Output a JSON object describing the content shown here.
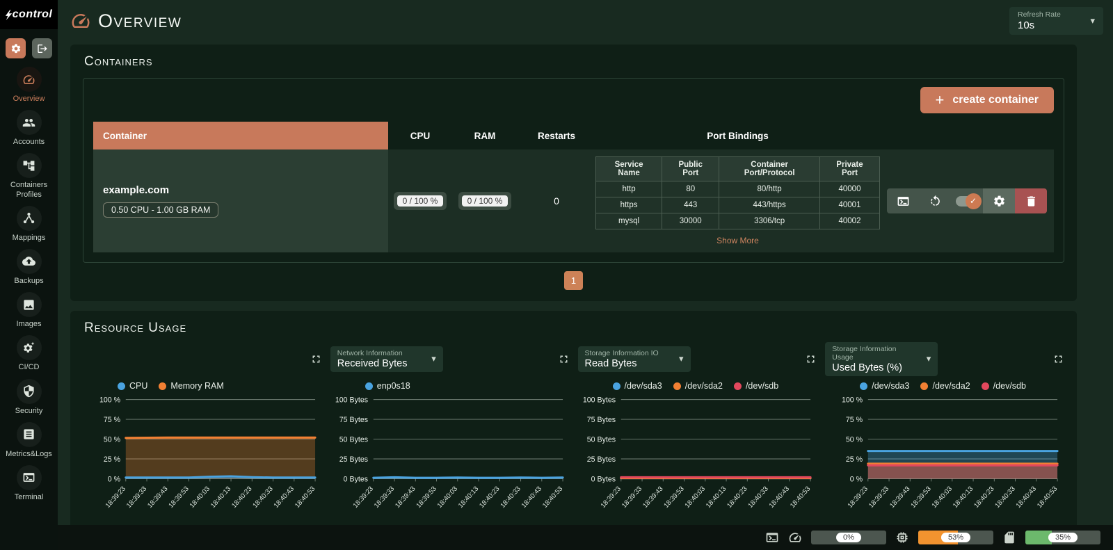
{
  "app": {
    "logo_text": "control",
    "refresh_rate": {
      "label": "Refresh Rate",
      "value": "10s"
    }
  },
  "header": {
    "title": "Overview"
  },
  "sidebar": {
    "items": [
      {
        "label": "Overview",
        "icon": "gauge-icon",
        "active": true
      },
      {
        "label": "Accounts",
        "icon": "people-icon",
        "active": false
      },
      {
        "label": "Containers Profiles",
        "icon": "tree-icon",
        "active": false
      },
      {
        "label": "Mappings",
        "icon": "hub-icon",
        "active": false
      },
      {
        "label": "Backups",
        "icon": "cloud-upload-icon",
        "active": false
      },
      {
        "label": "Images",
        "icon": "image-icon",
        "active": false
      },
      {
        "label": "CI/CD",
        "icon": "gear-sparkle-icon",
        "active": false
      },
      {
        "label": "Security",
        "icon": "shield-icon",
        "active": false
      },
      {
        "label": "Metrics&Logs",
        "icon": "logs-icon",
        "active": false
      },
      {
        "label": "Terminal",
        "icon": "terminal-icon",
        "active": false
      }
    ]
  },
  "containers": {
    "title": "Containers",
    "create_button": "create container",
    "columns": {
      "container": "Container",
      "cpu": "CPU",
      "ram": "RAM",
      "restarts": "Restarts",
      "ports": "Port Bindings"
    },
    "row": {
      "name": "example.com",
      "spec": "0.50 CPU - 1.00 GB RAM",
      "cpu": "0 / 100 %",
      "ram": "0 / 100 %",
      "restarts": "0",
      "ports": {
        "columns": [
          "Service Name",
          "Public Port",
          "Container Port/Protocol",
          "Private Port"
        ],
        "rows": [
          [
            "http",
            "80",
            "80/http",
            "40000"
          ],
          [
            "https",
            "443",
            "443/https",
            "40001"
          ],
          [
            "mysql",
            "30000",
            "3306/tcp",
            "40002"
          ]
        ],
        "show_more": "Show More"
      }
    },
    "pagination": "1"
  },
  "resource_usage": {
    "title": "Resource Usage",
    "charts": [
      {
        "legend": [
          {
            "label": "CPU",
            "color": "#4aa3e0"
          },
          {
            "label": "Memory RAM",
            "color": "#f28033"
          }
        ]
      },
      {
        "dropdown": {
          "label": "Network Information",
          "value": "Received Bytes"
        },
        "legend": [
          {
            "label": "enp0s18",
            "color": "#4aa3e0"
          }
        ]
      },
      {
        "dropdown": {
          "label": "Storage Information IO",
          "value": "Read Bytes"
        },
        "legend": [
          {
            "label": "/dev/sda3",
            "color": "#4aa3e0"
          },
          {
            "label": "/dev/sda2",
            "color": "#f28033"
          },
          {
            "label": "/dev/sdb",
            "color": "#e2485d"
          }
        ]
      },
      {
        "dropdown": {
          "label": "Storage Information Usage",
          "value": "Used Bytes (%)"
        },
        "legend": [
          {
            "label": "/dev/sda3",
            "color": "#4aa3e0"
          },
          {
            "label": "/dev/sda2",
            "color": "#f28033"
          },
          {
            "label": "/dev/sdb",
            "color": "#e2485d"
          }
        ]
      }
    ]
  },
  "chart_data": [
    {
      "type": "area",
      "title": "CPU / Memory RAM usage",
      "x": [
        "18:39:23",
        "18:39:33",
        "18:39:43",
        "18:39:53",
        "18:40:03",
        "18:40:13",
        "18:40:23",
        "18:40:33",
        "18:40:43",
        "18:40:53"
      ],
      "ylim": [
        0,
        100
      ],
      "yticks": [
        {
          "v": 100,
          "label": "100 %"
        },
        {
          "v": 75,
          "label": "75 %"
        },
        {
          "v": 50,
          "label": "50 %"
        },
        {
          "v": 25,
          "label": "25 %"
        },
        {
          "v": 0,
          "label": "0 %"
        }
      ],
      "series": [
        {
          "name": "Memory RAM",
          "color": "#f28033",
          "values": [
            51.5,
            51.8,
            52,
            52,
            52,
            52,
            52,
            52,
            52,
            52
          ]
        },
        {
          "name": "CPU",
          "color": "#4aa3e0",
          "values": [
            1.5,
            1.5,
            1.5,
            1.5,
            2.5,
            3,
            2,
            1.5,
            1.5,
            1.5
          ]
        }
      ],
      "grid": true,
      "legend_position": "top-left"
    },
    {
      "type": "area",
      "title": "Network Information - Received Bytes",
      "x": [
        "18:39:23",
        "18:39:33",
        "18:39:43",
        "18:39:53",
        "18:40:03",
        "18:40:13",
        "18:40:23",
        "18:40:33",
        "18:40:43",
        "18:40:53"
      ],
      "ylim": [
        0,
        100
      ],
      "yticks": [
        {
          "v": 100,
          "label": "100 Bytes"
        },
        {
          "v": 75,
          "label": "75 Bytes"
        },
        {
          "v": 50,
          "label": "50 Bytes"
        },
        {
          "v": 25,
          "label": "25 Bytes"
        },
        {
          "v": 0,
          "label": "0 Bytes"
        }
      ],
      "series": [
        {
          "name": "enp0s18",
          "color": "#4aa3e0",
          "values": [
            1.2,
            1.8,
            1.2,
            1.2,
            1.5,
            1.2,
            1.2,
            1.5,
            1.2,
            1.5
          ]
        }
      ],
      "grid": true,
      "legend_position": "top-left"
    },
    {
      "type": "area",
      "title": "Storage Information IO - Read Bytes",
      "x": [
        "18:39:23",
        "18:39:33",
        "18:39:43",
        "18:39:53",
        "18:40:03",
        "18:40:13",
        "18:40:23",
        "18:40:33",
        "18:40:43",
        "18:40:53"
      ],
      "ylim": [
        0,
        100
      ],
      "yticks": [
        {
          "v": 100,
          "label": "100 Bytes"
        },
        {
          "v": 75,
          "label": "75 Bytes"
        },
        {
          "v": 50,
          "label": "50 Bytes"
        },
        {
          "v": 25,
          "label": "25 Bytes"
        },
        {
          "v": 0,
          "label": "0 Bytes"
        }
      ],
      "series": [
        {
          "name": "/dev/sda3",
          "color": "#4aa3e0",
          "values": [
            0.8,
            0.8,
            0.8,
            0.8,
            0.8,
            0.8,
            0.8,
            0.8,
            0.8,
            0.8
          ]
        },
        {
          "name": "/dev/sda2",
          "color": "#f28033",
          "values": [
            0.8,
            0.8,
            0.8,
            0.8,
            0.8,
            0.8,
            0.8,
            0.8,
            0.8,
            0.8
          ]
        },
        {
          "name": "/dev/sdb",
          "color": "#e2485d",
          "values": [
            1.8,
            1.8,
            1.8,
            1.8,
            1.8,
            1.8,
            1.8,
            1.8,
            1.8,
            1.8
          ]
        }
      ],
      "grid": true,
      "legend_position": "top-left"
    },
    {
      "type": "area",
      "title": "Storage Information Usage - Used Bytes (%)",
      "x": [
        "18:39:23",
        "18:39:33",
        "18:39:43",
        "18:39:53",
        "18:40:03",
        "18:40:13",
        "18:40:23",
        "18:40:33",
        "18:40:43",
        "18:40:53"
      ],
      "ylim": [
        0,
        100
      ],
      "yticks": [
        {
          "v": 100,
          "label": "100 %"
        },
        {
          "v": 75,
          "label": "75 %"
        },
        {
          "v": 50,
          "label": "50 %"
        },
        {
          "v": 25,
          "label": "25 %"
        },
        {
          "v": 0,
          "label": "0 %"
        }
      ],
      "series": [
        {
          "name": "/dev/sda3",
          "color": "#4aa3e0",
          "values": [
            35,
            35,
            35,
            35,
            35,
            35,
            35,
            35,
            35,
            35
          ]
        },
        {
          "name": "/dev/sda2",
          "color": "#f28033",
          "values": [
            19,
            19,
            19,
            19,
            19,
            19,
            19,
            19,
            19,
            19
          ]
        },
        {
          "name": "/dev/sdb",
          "color": "#e2485d",
          "values": [
            17,
            17,
            17,
            17,
            17,
            17,
            17,
            17,
            17,
            17
          ]
        }
      ],
      "grid": true,
      "legend_position": "top-left"
    }
  ],
  "statusbar": {
    "gauges": [
      {
        "icon": "gauge-icon",
        "label": "0%",
        "percent": 0,
        "color": "#6c776f"
      },
      {
        "icon": "cpu-chip-icon",
        "label": "53%",
        "percent": 53,
        "color": "#f2932f"
      },
      {
        "icon": "sd-card-icon",
        "label": "35%",
        "percent": 35,
        "color": "#6cb96c"
      }
    ]
  }
}
